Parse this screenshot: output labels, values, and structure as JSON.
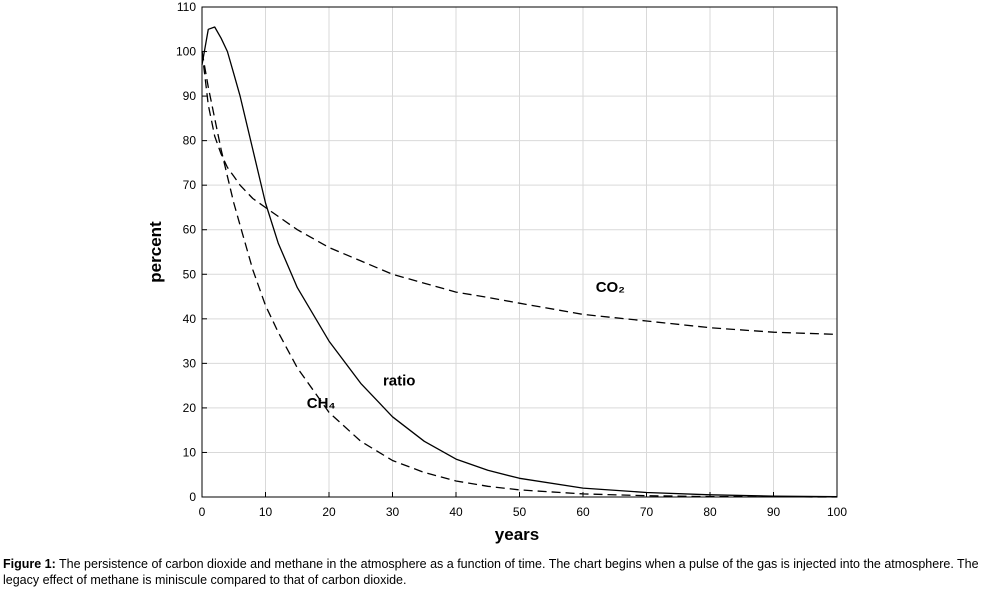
{
  "chart_data": {
    "type": "line",
    "x_label": "years",
    "y_label": "percent",
    "x": [
      0,
      1,
      2,
      3,
      4,
      5,
      6,
      8,
      10,
      12,
      15,
      20,
      25,
      30,
      35,
      40,
      45,
      50,
      60,
      70,
      80,
      90,
      100
    ],
    "series": [
      {
        "name": "CO₂",
        "color": "#000000",
        "style": "dashed",
        "values": [
          100,
          88,
          81,
          77,
          74,
          72,
          70,
          67,
          65,
          63,
          60,
          56,
          53,
          50,
          48,
          46,
          44.8,
          43.5,
          41,
          39.5,
          38,
          37,
          36.5
        ]
      },
      {
        "name": "CH₄",
        "color": "#000000",
        "style": "dashed",
        "values": [
          100,
          92,
          85,
          78,
          72,
          66,
          61,
          51,
          43,
          37,
          29,
          19,
          12.5,
          8.2,
          5.5,
          3.6,
          2.4,
          1.6,
          0.7,
          0.3,
          0.1,
          0.05,
          0
        ]
      },
      {
        "name": "ratio",
        "color": "#000000",
        "style": "solid",
        "values": [
          97,
          105,
          105.5,
          103,
          100,
          95,
          90,
          78,
          66,
          57,
          47,
          35,
          25.5,
          18,
          12.5,
          8.5,
          6,
          4.2,
          2,
          1,
          0.5,
          0.2,
          0.1
        ]
      }
    ],
    "xlim": [
      0,
      100
    ],
    "ylim": [
      0,
      110
    ],
    "xticks": [
      0,
      10,
      20,
      30,
      40,
      50,
      60,
      70,
      80,
      90,
      100
    ],
    "yticks": [
      0,
      10,
      20,
      30,
      40,
      50,
      60,
      70,
      80,
      90,
      100,
      110
    ],
    "grid": true,
    "caption": {
      "label": "Figure 1:",
      "text": " The persistence of carbon dioxide and methane in the atmosphere as a function of time. The chart begins when a pulse of the gas is injected into the atmosphere. The legacy effect of methane is miniscule compared to that of carbon dioxide."
    }
  }
}
